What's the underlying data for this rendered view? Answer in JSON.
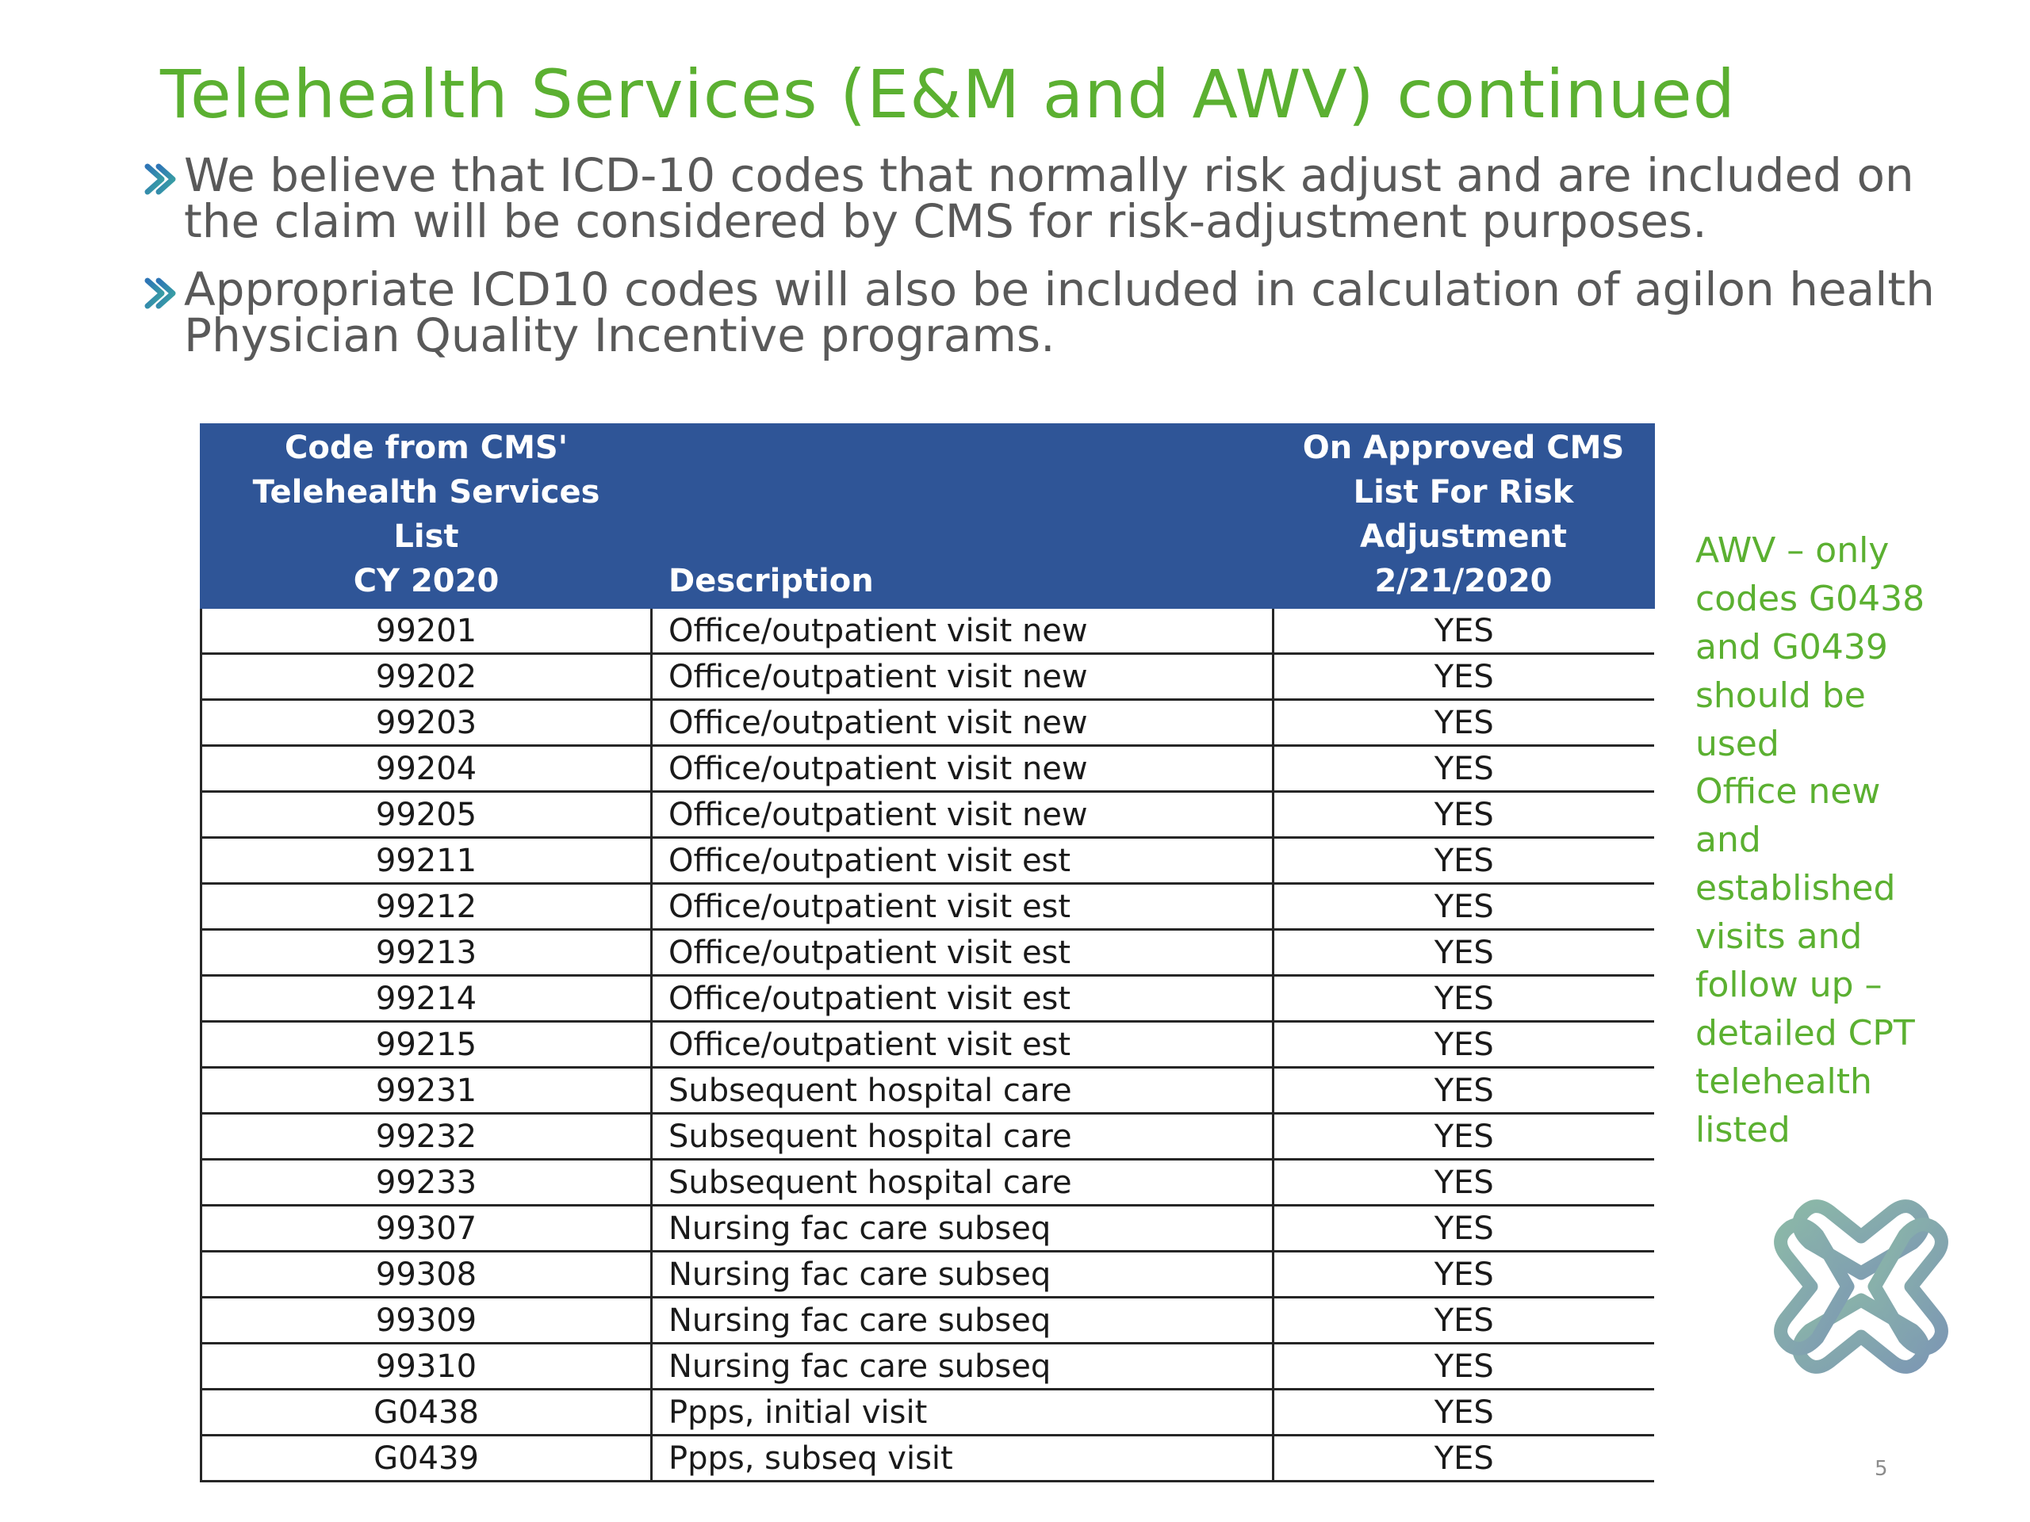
{
  "title": "Telehealth Services (E&M and AWV) continued",
  "bullets": [
    "We believe that ICD-10 codes that normally risk adjust and are included on the claim will be considered by CMS for risk-adjustment purposes.",
    "Appropriate ICD10 codes will also be included in calculation of agilon health Physician Quality Incentive programs."
  ],
  "table": {
    "headers": {
      "code_lines": [
        "Code from CMS'",
        "Telehealth Services List",
        "CY 2020"
      ],
      "description": "Description",
      "cms_lines": [
        "On Approved CMS",
        "List For Risk",
        "Adjustment",
        "2/21/2020"
      ]
    },
    "rows": [
      {
        "code": "99201",
        "description": "Office/outpatient visit new",
        "cms": "YES"
      },
      {
        "code": "99202",
        "description": "Office/outpatient visit new",
        "cms": "YES"
      },
      {
        "code": "99203",
        "description": "Office/outpatient visit new",
        "cms": "YES"
      },
      {
        "code": "99204",
        "description": "Office/outpatient visit new",
        "cms": "YES"
      },
      {
        "code": "99205",
        "description": "Office/outpatient visit new",
        "cms": "YES"
      },
      {
        "code": "99211",
        "description": "Office/outpatient visit est",
        "cms": "YES"
      },
      {
        "code": "99212",
        "description": "Office/outpatient visit est",
        "cms": "YES"
      },
      {
        "code": "99213",
        "description": "Office/outpatient visit est",
        "cms": "YES"
      },
      {
        "code": "99214",
        "description": "Office/outpatient visit est",
        "cms": "YES"
      },
      {
        "code": "99215",
        "description": "Office/outpatient visit est",
        "cms": "YES"
      },
      {
        "code": "99231",
        "description": "Subsequent hospital care",
        "cms": "YES"
      },
      {
        "code": "99232",
        "description": "Subsequent hospital care",
        "cms": "YES"
      },
      {
        "code": "99233",
        "description": "Subsequent hospital care",
        "cms": "YES"
      },
      {
        "code": "99307",
        "description": "Nursing fac care subseq",
        "cms": "YES"
      },
      {
        "code": "99308",
        "description": "Nursing fac care subseq",
        "cms": "YES"
      },
      {
        "code": "99309",
        "description": "Nursing fac care subseq",
        "cms": "YES"
      },
      {
        "code": "99310",
        "description": "Nursing fac care subseq",
        "cms": "YES"
      },
      {
        "code": "G0438",
        "description": "Ppps, initial visit",
        "cms": "YES"
      },
      {
        "code": "G0439",
        "description": "Ppps, subseq visit",
        "cms": "YES"
      }
    ]
  },
  "side_notes": [
    [
      "AWV – only",
      "codes G0438",
      "and G0439",
      "should be used"
    ],
    [
      "Office new and",
      "established",
      "visits and",
      "follow up –",
      "detailed CPT",
      "telehealth",
      "listed"
    ]
  ],
  "page_number": "5",
  "colors": {
    "title_green": "#5bb031",
    "header_blue": "#2f5597",
    "body_gray": "#595959",
    "logo_teal": "#7fa9a4"
  },
  "icons": {
    "bullet": "chevron-right-icon",
    "logo": "agilon-logo-icon"
  }
}
